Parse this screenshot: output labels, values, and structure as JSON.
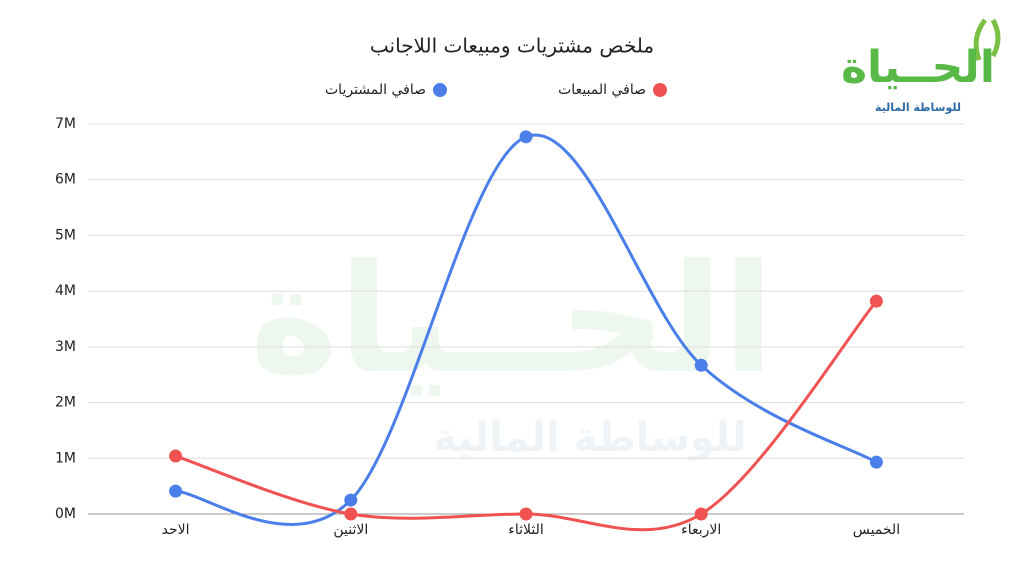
{
  "chart_data": {
    "type": "line",
    "title": "ملخص مشتريات ومبيعات اللاجانب",
    "logo": {
      "name": "الحــياة",
      "tagline": "للوساطة المالية"
    },
    "categories": [
      "الاحد",
      "الاثنين",
      "الثلاثاء",
      "الاربعاء",
      "الخميس"
    ],
    "series": [
      {
        "name": "صافي المشتريات",
        "color": "#4a7fea",
        "values": [
          0.41,
          0.25,
          6.77,
          2.67,
          0.93
        ]
      },
      {
        "name": "صافي المبيعات",
        "color": "#f05252",
        "values": [
          1.04,
          0,
          0,
          0,
          3.82
        ]
      }
    ],
    "ylim": [
      0,
      7
    ],
    "yticks": [
      {
        "value": 0,
        "label": "0M"
      },
      {
        "value": 1,
        "label": "1M"
      },
      {
        "value": 2,
        "label": "2M"
      },
      {
        "value": 3,
        "label": "3M"
      },
      {
        "value": 4,
        "label": "4M"
      },
      {
        "value": 5,
        "label": "5M"
      },
      {
        "value": 6,
        "label": "6M"
      },
      {
        "value": 7,
        "label": "7M"
      }
    ],
    "grid": true,
    "smooth": true,
    "legend": "top"
  }
}
